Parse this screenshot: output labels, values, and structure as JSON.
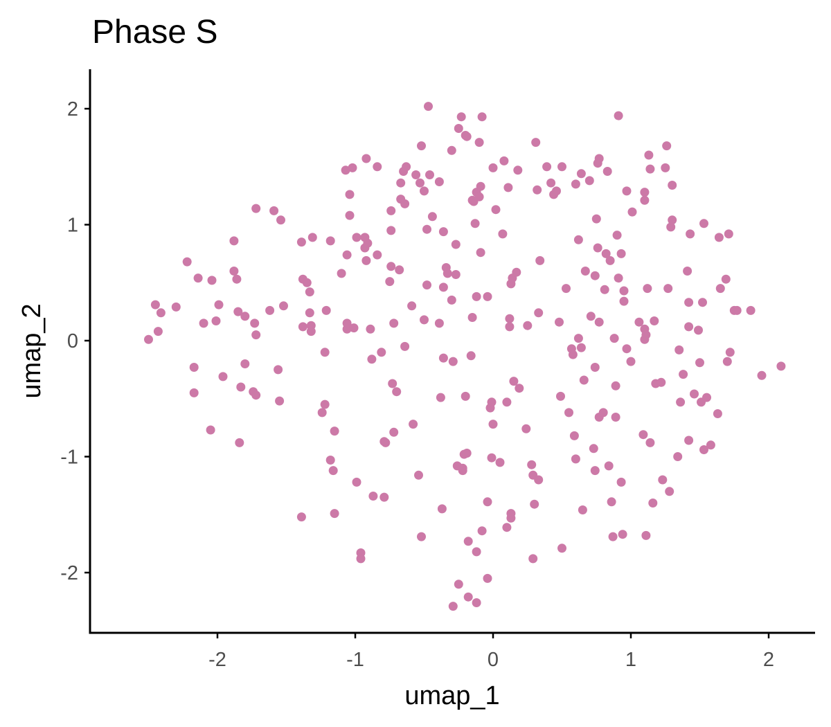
{
  "chart_data": {
    "type": "scatter",
    "title": "Phase S",
    "xlabel": "umap_1",
    "ylabel": "umap_2",
    "xlim": [
      -2.58,
      2.34
    ],
    "ylim": [
      -2.52,
      2.35
    ],
    "xticks": [
      -2,
      -1,
      0,
      1,
      2
    ],
    "yticks": [
      -2,
      -1,
      0,
      1,
      2
    ],
    "xtick_labels": [
      "-2",
      "-1",
      "0",
      "1",
      "2"
    ],
    "ytick_labels": [
      "-2",
      "-1",
      "0",
      "1",
      "2"
    ],
    "grid": false,
    "legend": "none",
    "point_color": "#CC79A7",
    "points": [
      [
        -2.5,
        0.01
      ],
      [
        -2.45,
        0.31
      ],
      [
        -2.43,
        0.08
      ],
      [
        -2.41,
        0.24
      ],
      [
        -2.3,
        0.29
      ],
      [
        -2.22,
        0.68
      ],
      [
        -2.17,
        -0.23
      ],
      [
        -2.17,
        -0.45
      ],
      [
        -2.14,
        0.54
      ],
      [
        -2.1,
        0.15
      ],
      [
        -2.04,
        0.52
      ],
      [
        -2.05,
        -0.77
      ],
      [
        -2.01,
        0.17
      ],
      [
        -1.99,
        0.31
      ],
      [
        -1.96,
        -0.31
      ],
      [
        -1.88,
        0.86
      ],
      [
        -1.88,
        0.6
      ],
      [
        -1.86,
        0.53
      ],
      [
        -1.85,
        0.25
      ],
      [
        -1.84,
        -0.88
      ],
      [
        -1.83,
        -0.4
      ],
      [
        -1.8,
        0.21
      ],
      [
        -1.8,
        -0.2
      ],
      [
        -1.74,
        -0.44
      ],
      [
        -1.73,
        0.15
      ],
      [
        -1.72,
        0.05
      ],
      [
        -1.72,
        -0.47
      ],
      [
        -1.72,
        1.14
      ],
      [
        -1.62,
        0.26
      ],
      [
        -1.59,
        1.12
      ],
      [
        -1.56,
        -0.25
      ],
      [
        -1.55,
        -0.52
      ],
      [
        -1.54,
        1.04
      ],
      [
        -1.52,
        0.3
      ],
      [
        -1.39,
        0.85
      ],
      [
        -1.39,
        -1.52
      ],
      [
        -1.38,
        0.53
      ],
      [
        -1.38,
        0.12
      ],
      [
        -1.35,
        0.5
      ],
      [
        -1.33,
        0.24
      ],
      [
        -1.33,
        0.42
      ],
      [
        -1.32,
        0.13
      ],
      [
        -1.32,
        0.08
      ],
      [
        -1.31,
        0.89
      ],
      [
        -1.24,
        -0.62
      ],
      [
        -1.22,
        -0.55
      ],
      [
        -1.22,
        -0.1
      ],
      [
        -1.21,
        0.26
      ],
      [
        -1.18,
        0.86
      ],
      [
        -1.18,
        -1.03
      ],
      [
        -1.16,
        -1.12
      ],
      [
        -1.15,
        -0.78
      ],
      [
        -1.15,
        -1.49
      ],
      [
        -1.1,
        0.58
      ],
      [
        -1.07,
        1.47
      ],
      [
        -1.06,
        0.1
      ],
      [
        -1.06,
        0.74
      ],
      [
        -1.06,
        0.15
      ],
      [
        -1.04,
        1.26
      ],
      [
        -1.04,
        1.08
      ],
      [
        -1.02,
        1.49
      ],
      [
        -1.01,
        0.11
      ],
      [
        -0.99,
        0.89
      ],
      [
        -0.99,
        -1.22
      ],
      [
        -0.96,
        -1.83
      ],
      [
        -0.96,
        -1.88
      ],
      [
        -0.93,
        0.89
      ],
      [
        -0.93,
        0.8
      ],
      [
        -0.92,
        0.69
      ],
      [
        -0.92,
        1.57
      ],
      [
        -0.91,
        0.84
      ],
      [
        -0.89,
        0.1
      ],
      [
        -0.88,
        -0.16
      ],
      [
        -0.87,
        -1.34
      ],
      [
        -0.84,
        1.5
      ],
      [
        -0.84,
        0.74
      ],
      [
        -0.81,
        -0.1
      ],
      [
        -0.79,
        -0.87
      ],
      [
        -0.79,
        -1.35
      ],
      [
        -0.78,
        -0.88
      ],
      [
        -0.75,
        0.51
      ],
      [
        -0.74,
        0.95
      ],
      [
        -0.74,
        0.64
      ],
      [
        -0.74,
        1.12
      ],
      [
        -0.73,
        -0.37
      ],
      [
        -0.72,
        0.15
      ],
      [
        -0.72,
        -0.79
      ],
      [
        -0.7,
        -0.44
      ],
      [
        -0.68,
        0.61
      ],
      [
        -0.67,
        1.22
      ],
      [
        -0.67,
        1.36
      ],
      [
        -0.65,
        1.46
      ],
      [
        -0.64,
        -0.05
      ],
      [
        -0.64,
        1.18
      ],
      [
        -0.63,
        1.5
      ],
      [
        -0.59,
        0.3
      ],
      [
        -0.58,
        -0.72
      ],
      [
        -0.56,
        1.43
      ],
      [
        -0.54,
        -1.16
      ],
      [
        -0.53,
        1.36
      ],
      [
        -0.52,
        1.68
      ],
      [
        -0.52,
        -1.69
      ],
      [
        -0.5,
        0.18
      ],
      [
        -0.5,
        1.29
      ],
      [
        -0.48,
        0.96
      ],
      [
        -0.48,
        0.48
      ],
      [
        -0.47,
        2.02
      ],
      [
        -0.46,
        1.43
      ],
      [
        -0.44,
        1.07
      ],
      [
        -0.39,
        0.15
      ],
      [
        -0.39,
        1.37
      ],
      [
        -0.38,
        -0.49
      ],
      [
        -0.37,
        -1.45
      ],
      [
        -0.36,
        0.46
      ],
      [
        -0.36,
        -0.15
      ],
      [
        -0.36,
        0.94
      ],
      [
        -0.34,
        0.63
      ],
      [
        -0.33,
        0.58
      ],
      [
        -0.3,
        0.35
      ],
      [
        -0.3,
        1.64
      ],
      [
        -0.29,
        -2.29
      ],
      [
        -0.29,
        -0.18
      ],
      [
        -0.27,
        0.57
      ],
      [
        -0.27,
        0.83
      ],
      [
        -0.26,
        -1.08
      ],
      [
        -0.25,
        1.83
      ],
      [
        -0.25,
        -2.1
      ],
      [
        -0.23,
        1.93
      ],
      [
        -0.22,
        -1.12
      ],
      [
        -0.22,
        -1.1
      ],
      [
        -0.21,
        -0.98
      ],
      [
        -0.2,
        1.77
      ],
      [
        -0.2,
        -0.48
      ],
      [
        -0.19,
        1.76
      ],
      [
        -0.19,
        -0.97
      ],
      [
        -0.18,
        -1.73
      ],
      [
        -0.18,
        -2.21
      ],
      [
        -0.16,
        -0.13
      ],
      [
        -0.15,
        0.2
      ],
      [
        -0.15,
        1.21
      ],
      [
        -0.14,
        1.2
      ],
      [
        -0.13,
        1.01
      ],
      [
        -0.12,
        1.28
      ],
      [
        -0.12,
        0.38
      ],
      [
        -0.12,
        -1.82
      ],
      [
        -0.12,
        -2.26
      ],
      [
        -0.1,
        1.24
      ],
      [
        -0.1,
        1.71
      ],
      [
        -0.09,
        0.76
      ],
      [
        -0.09,
        1.33
      ],
      [
        -0.08,
        1.93
      ],
      [
        -0.08,
        -1.64
      ],
      [
        -0.04,
        -2.05
      ],
      [
        -0.04,
        -1.39
      ],
      [
        -0.04,
        0.38
      ],
      [
        -0.02,
        -0.58
      ],
      [
        -0.01,
        -0.53
      ],
      [
        -0.01,
        -1.01
      ],
      [
        0,
        -0.72
      ],
      [
        0,
        1.49
      ],
      [
        0.02,
        1.13
      ],
      [
        0.05,
        -1.05
      ],
      [
        0.07,
        0.92
      ],
      [
        0.08,
        1.55
      ],
      [
        0.1,
        -1.61
      ],
      [
        0.1,
        -0.53
      ],
      [
        0.11,
        1.32
      ],
      [
        0.12,
        0.19
      ],
      [
        0.12,
        0.12
      ],
      [
        0.13,
        -1.53
      ],
      [
        0.13,
        -1.49
      ],
      [
        0.13,
        0.49
      ],
      [
        0.14,
        0.54
      ],
      [
        0.15,
        -0.35
      ],
      [
        0.17,
        0.59
      ],
      [
        0.18,
        1.47
      ],
      [
        0.19,
        -0.41
      ],
      [
        0.24,
        -0.76
      ],
      [
        0.25,
        0.13
      ],
      [
        0.28,
        -1.07
      ],
      [
        0.29,
        -1.16
      ],
      [
        0.3,
        -1.41
      ],
      [
        0.29,
        -1.88
      ],
      [
        0.31,
        1.71
      ],
      [
        0.32,
        1.3
      ],
      [
        0.33,
        -1.2
      ],
      [
        0.33,
        0.24
      ],
      [
        0.34,
        0.69
      ],
      [
        0.39,
        1.5
      ],
      [
        0.42,
        1.36
      ],
      [
        0.44,
        1.26
      ],
      [
        0.46,
        1.29
      ],
      [
        0.48,
        0.16
      ],
      [
        0.49,
        -0.48
      ],
      [
        0.5,
        1.5
      ],
      [
        0.5,
        -1.79
      ],
      [
        0.53,
        0.45
      ],
      [
        0.55,
        -0.62
      ],
      [
        0.57,
        -0.07
      ],
      [
        0.58,
        -0.12
      ],
      [
        0.59,
        -0.82
      ],
      [
        0.6,
        1.35
      ],
      [
        0.6,
        -1.02
      ],
      [
        0.62,
        0.02
      ],
      [
        0.62,
        0.87
      ],
      [
        0.64,
        -0.06
      ],
      [
        0.64,
        1.44
      ],
      [
        0.65,
        -1.46
      ],
      [
        0.66,
        -0.34
      ],
      [
        0.67,
        0.6
      ],
      [
        0.7,
        1.38
      ],
      [
        0.71,
        0.21
      ],
      [
        0.73,
        -0.93
      ],
      [
        0.74,
        -0.23
      ],
      [
        0.74,
        0.56
      ],
      [
        0.74,
        -1.12
      ],
      [
        0.75,
        1.05
      ],
      [
        0.76,
        1.53
      ],
      [
        0.76,
        0.8
      ],
      [
        0.77,
        1.57
      ],
      [
        0.77,
        0.16
      ],
      [
        0.77,
        -0.66
      ],
      [
        0.8,
        -0.62
      ],
      [
        0.81,
        0.44
      ],
      [
        0.82,
        0.75
      ],
      [
        0.83,
        1.46
      ],
      [
        0.84,
        -1.08
      ],
      [
        0.85,
        0.69
      ],
      [
        0.86,
        -1.39
      ],
      [
        0.87,
        -1.69
      ],
      [
        0.88,
        0.02
      ],
      [
        0.89,
        -0.66
      ],
      [
        0.89,
        -0.39
      ],
      [
        0.9,
        0.91
      ],
      [
        0.91,
        0.54
      ],
      [
        0.91,
        1.94
      ],
      [
        0.93,
        -1.22
      ],
      [
        0.93,
        0.75
      ],
      [
        0.94,
        -1.67
      ],
      [
        0.95,
        0.43
      ],
      [
        0.95,
        0.34
      ],
      [
        0.97,
        1.29
      ],
      [
        0.97,
        -0.07
      ],
      [
        1,
        -0.18
      ],
      [
        1.01,
        1.11
      ],
      [
        1.06,
        0.16
      ],
      [
        1.09,
        -0.81
      ],
      [
        1.1,
        0.01
      ],
      [
        1.1,
        0.1
      ],
      [
        1.1,
        1.28
      ],
      [
        1.1,
        1.21
      ],
      [
        1.11,
        -1.68
      ],
      [
        1.11,
        0.05
      ],
      [
        1.12,
        0.45
      ],
      [
        1.13,
        1.6
      ],
      [
        1.14,
        1.48
      ],
      [
        1.14,
        -0.88
      ],
      [
        1.16,
        -1.4
      ],
      [
        1.17,
        0.17
      ],
      [
        1.18,
        -0.37
      ],
      [
        1.22,
        -0.36
      ],
      [
        1.23,
        -1.2
      ],
      [
        1.25,
        1.49
      ],
      [
        1.26,
        1.68
      ],
      [
        1.27,
        0.45
      ],
      [
        1.28,
        -1.3
      ],
      [
        1.29,
        0.98
      ],
      [
        1.3,
        1.04
      ],
      [
        1.3,
        1.34
      ],
      [
        1.34,
        -1
      ],
      [
        1.35,
        -0.08
      ],
      [
        1.36,
        -0.53
      ],
      [
        1.38,
        -0.29
      ],
      [
        1.41,
        0.6
      ],
      [
        1.42,
        0.33
      ],
      [
        1.42,
        0.12
      ],
      [
        1.42,
        -0.86
      ],
      [
        1.43,
        0.92
      ],
      [
        1.46,
        -0.46
      ],
      [
        1.49,
        0.09
      ],
      [
        1.5,
        -0.19
      ],
      [
        1.51,
        -0.53
      ],
      [
        1.52,
        0.33
      ],
      [
        1.53,
        1.01
      ],
      [
        1.53,
        -0.94
      ],
      [
        1.55,
        -0.49
      ],
      [
        1.58,
        -0.9
      ],
      [
        1.63,
        -0.63
      ],
      [
        1.64,
        0.89
      ],
      [
        1.65,
        0.45
      ],
      [
        1.69,
        0.53
      ],
      [
        1.7,
        -0.18
      ],
      [
        1.71,
        0.92
      ],
      [
        1.72,
        -0.1
      ],
      [
        1.75,
        0.26
      ],
      [
        1.77,
        0.26
      ],
      [
        1.87,
        0.26
      ],
      [
        1.95,
        -0.3
      ],
      [
        2.09,
        -0.22
      ]
    ]
  }
}
